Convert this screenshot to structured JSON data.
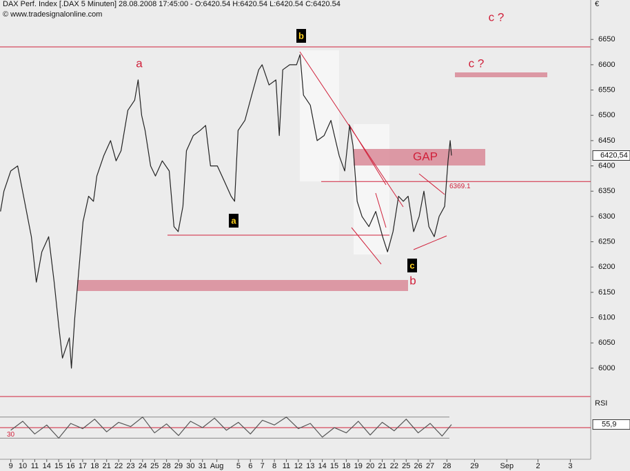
{
  "chart_data": [
    {
      "type": "line",
      "title": "DAX Perf. Index [.DAX  5 Minuten] 28.08.2008 17:45:00 - O:6420.54 H:6420.54 L:6420.54 C:6420.54",
      "subtitle": "© www.tradesignalonline.com",
      "currency": "€",
      "annotations": [
        "b",
        "a",
        "c",
        "a",
        "b",
        "c ?",
        "c ?",
        "GAP"
      ],
      "xlim": [
        -0.9,
        48.4
      ],
      "xticks": [
        {
          "value": 0,
          "label": "9"
        },
        {
          "value": 1,
          "label": "10"
        },
        {
          "value": 2,
          "label": "11"
        },
        {
          "value": 3,
          "label": "14"
        },
        {
          "value": 4,
          "label": "15"
        },
        {
          "value": 5,
          "label": "16"
        },
        {
          "value": 6,
          "label": "17"
        },
        {
          "value": 7,
          "label": "18"
        },
        {
          "value": 8,
          "label": "21"
        },
        {
          "value": 9,
          "label": "22"
        },
        {
          "value": 10,
          "label": "23"
        },
        {
          "value": 11,
          "label": "24"
        },
        {
          "value": 12,
          "label": "25"
        },
        {
          "value": 13,
          "label": "28"
        },
        {
          "value": 14,
          "label": "29"
        },
        {
          "value": 15,
          "label": "30"
        },
        {
          "value": 16,
          "label": "31"
        },
        {
          "value": 17.2,
          "label": "Aug"
        },
        {
          "value": 19,
          "label": "5"
        },
        {
          "value": 20,
          "label": "6"
        },
        {
          "value": 21,
          "label": "7"
        },
        {
          "value": 22,
          "label": "8"
        },
        {
          "value": 23,
          "label": "11"
        },
        {
          "value": 24,
          "label": "12"
        },
        {
          "value": 25,
          "label": "13"
        },
        {
          "value": 26,
          "label": "14"
        },
        {
          "value": 27,
          "label": "15"
        },
        {
          "value": 28,
          "label": "18"
        },
        {
          "value": 29,
          "label": "19"
        },
        {
          "value": 30,
          "label": "20"
        },
        {
          "value": 31,
          "label": "21"
        },
        {
          "value": 32,
          "label": "22"
        },
        {
          "value": 33,
          "label": "25"
        },
        {
          "value": 34,
          "label": "26"
        },
        {
          "value": 35,
          "label": "27"
        },
        {
          "value": 36.4,
          "label": "28"
        },
        {
          "value": 38.7,
          "label": "29"
        },
        {
          "value": 41.4,
          "label": "Sep"
        },
        {
          "value": 44,
          "label": "2"
        },
        {
          "value": 46.7,
          "label": "3"
        }
      ],
      "ylim": [
        5944,
        6728
      ],
      "yticks": [
        6000,
        6050,
        6100,
        6150,
        6200,
        6250,
        6300,
        6350,
        6400,
        6450,
        6500,
        6550,
        6600,
        6650
      ],
      "level": 6369.1,
      "last_price": {
        "value": 6420.54,
        "label": "6420,54"
      },
      "series": [
        {
          "color": "#222222",
          "x": [
            -0.86,
            -0.57,
            0,
            0.57,
            1.15,
            1.72,
            2.13,
            2.59,
            3.16,
            3.62,
            4.02,
            4.31,
            4.89,
            5.06,
            5.34,
            5.63,
            6.03,
            6.49,
            6.9,
            7.18,
            7.76,
            8.33,
            8.79,
            9.2,
            9.77,
            10.34,
            10.63,
            10.92,
            11.21,
            11.67,
            12.07,
            12.64,
            13.22,
            13.62,
            13.97,
            14.37,
            14.66,
            15.23,
            15.8,
            16.26,
            16.67,
            17.24,
            17.82,
            18.39,
            18.68,
            18.97,
            19.54,
            20.11,
            20.69,
            20.98,
            21.55,
            22.13,
            22.41,
            22.7,
            23.28,
            23.85,
            24.14,
            24.43,
            25,
            25.57,
            26.15,
            26.72,
            27.01,
            27.41,
            27.87,
            28.28,
            28.56,
            28.91,
            29.31,
            29.89,
            30.46,
            31.03,
            31.44,
            31.9,
            32.36,
            32.76,
            33.16,
            33.62,
            34.08,
            34.48,
            34.89,
            35.34,
            35.75,
            36.21,
            36.49,
            36.67,
            36.78
          ],
          "values": [
            6310,
            6350,
            6390,
            6400,
            6330,
            6260,
            6170,
            6230,
            6260,
            6170,
            6080,
            6020,
            6060,
            6000,
            6100,
            6180,
            6290,
            6340,
            6330,
            6380,
            6420,
            6450,
            6410,
            6430,
            6510,
            6530,
            6570,
            6500,
            6470,
            6400,
            6380,
            6410,
            6390,
            6280,
            6270,
            6320,
            6430,
            6460,
            6470,
            6480,
            6400,
            6400,
            6370,
            6340,
            6330,
            6470,
            6490,
            6540,
            6590,
            6600,
            6560,
            6570,
            6460,
            6590,
            6600,
            6600,
            6620,
            6540,
            6520,
            6450,
            6460,
            6490,
            6460,
            6420,
            6390,
            6480,
            6440,
            6330,
            6300,
            6280,
            6310,
            6260,
            6230,
            6270,
            6340,
            6330,
            6340,
            6270,
            6300,
            6350,
            6280,
            6260,
            6300,
            6320,
            6410,
            6450,
            6420.54
          ]
        }
      ]
    },
    {
      "type": "line",
      "title": "RSI",
      "ylim": [
        -10,
        105
      ],
      "yticks": [
        30
      ],
      "levels": [
        70,
        30
      ],
      "midline": 50,
      "last_value": {
        "value": 55.9,
        "label": "55,9"
      },
      "series": [
        {
          "color": "#555555",
          "x": [
            0,
            1,
            2,
            3,
            4,
            5,
            6,
            7,
            8,
            9,
            10,
            11,
            12,
            13,
            14,
            15,
            16,
            17,
            18,
            19,
            20,
            21,
            22,
            23,
            24,
            25,
            26,
            27,
            28,
            29,
            30,
            31,
            32,
            33,
            34,
            35,
            36,
            36.78
          ],
          "values": [
            45,
            62,
            38,
            55,
            30,
            58,
            48,
            66,
            42,
            60,
            52,
            70,
            40,
            57,
            35,
            62,
            50,
            68,
            45,
            60,
            38,
            64,
            55,
            70,
            48,
            58,
            32,
            50,
            40,
            62,
            36,
            60,
            44,
            66,
            40,
            58,
            34,
            55.9
          ]
        }
      ]
    }
  ]
}
